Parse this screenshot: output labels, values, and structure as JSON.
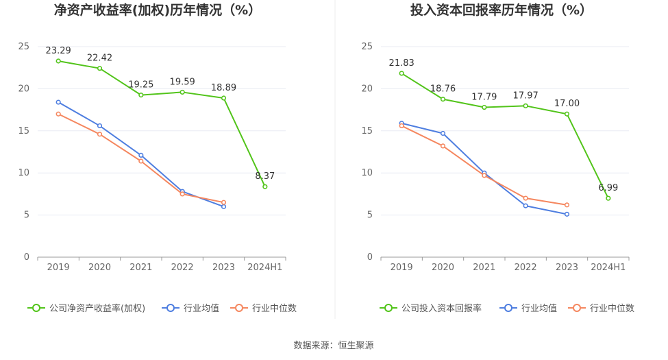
{
  "source": "数据来源：恒生聚源",
  "colors": {
    "company": "#52c41a",
    "avg": "#4e7ee0",
    "median": "#f5875f",
    "grid": "#e8ebf3",
    "axis": "#999999"
  },
  "chart_data": [
    {
      "type": "line",
      "title": "净资产收益率(加权)历年情况（%）",
      "categories": [
        "2019",
        "2020",
        "2021",
        "2022",
        "2023",
        "2024H1"
      ],
      "ylim": [
        0,
        25
      ],
      "yticks": [
        "0",
        "5",
        "10",
        "15",
        "20",
        "25"
      ],
      "grid": true,
      "legend_position": "bottom",
      "series": [
        {
          "name": "公司净资产收益率(加权)",
          "values": [
            23.29,
            22.42,
            19.25,
            19.59,
            18.89,
            8.37
          ],
          "labels": [
            "23.29",
            "22.42",
            "19.25",
            "19.59",
            "18.89",
            "8.37"
          ],
          "color": "#52c41a"
        },
        {
          "name": "行业均值",
          "values": [
            18.4,
            15.6,
            12.1,
            7.8,
            6.0,
            null
          ],
          "color": "#4e7ee0"
        },
        {
          "name": "行业中位数",
          "values": [
            17.0,
            14.6,
            11.4,
            7.5,
            6.5,
            null
          ],
          "color": "#f5875f"
        }
      ]
    },
    {
      "type": "line",
      "title": "投入资本回报率历年情况（%）",
      "categories": [
        "2019",
        "2020",
        "2021",
        "2022",
        "2023",
        "2024H1"
      ],
      "ylim": [
        0,
        25
      ],
      "yticks": [
        "0",
        "5",
        "10",
        "15",
        "20",
        "25"
      ],
      "grid": true,
      "legend_position": "bottom",
      "series": [
        {
          "name": "公司投入资本回报率",
          "values": [
            21.83,
            18.76,
            17.79,
            17.97,
            17.0,
            6.99
          ],
          "labels": [
            "21.83",
            "18.76",
            "17.79",
            "17.97",
            "17.00",
            "6.99"
          ],
          "color": "#52c41a"
        },
        {
          "name": "行业均值",
          "values": [
            15.9,
            14.7,
            10.0,
            6.1,
            5.1,
            null
          ],
          "color": "#4e7ee0"
        },
        {
          "name": "行业中位数",
          "values": [
            15.6,
            13.2,
            9.7,
            7.0,
            6.2,
            null
          ],
          "color": "#f5875f"
        }
      ]
    }
  ]
}
